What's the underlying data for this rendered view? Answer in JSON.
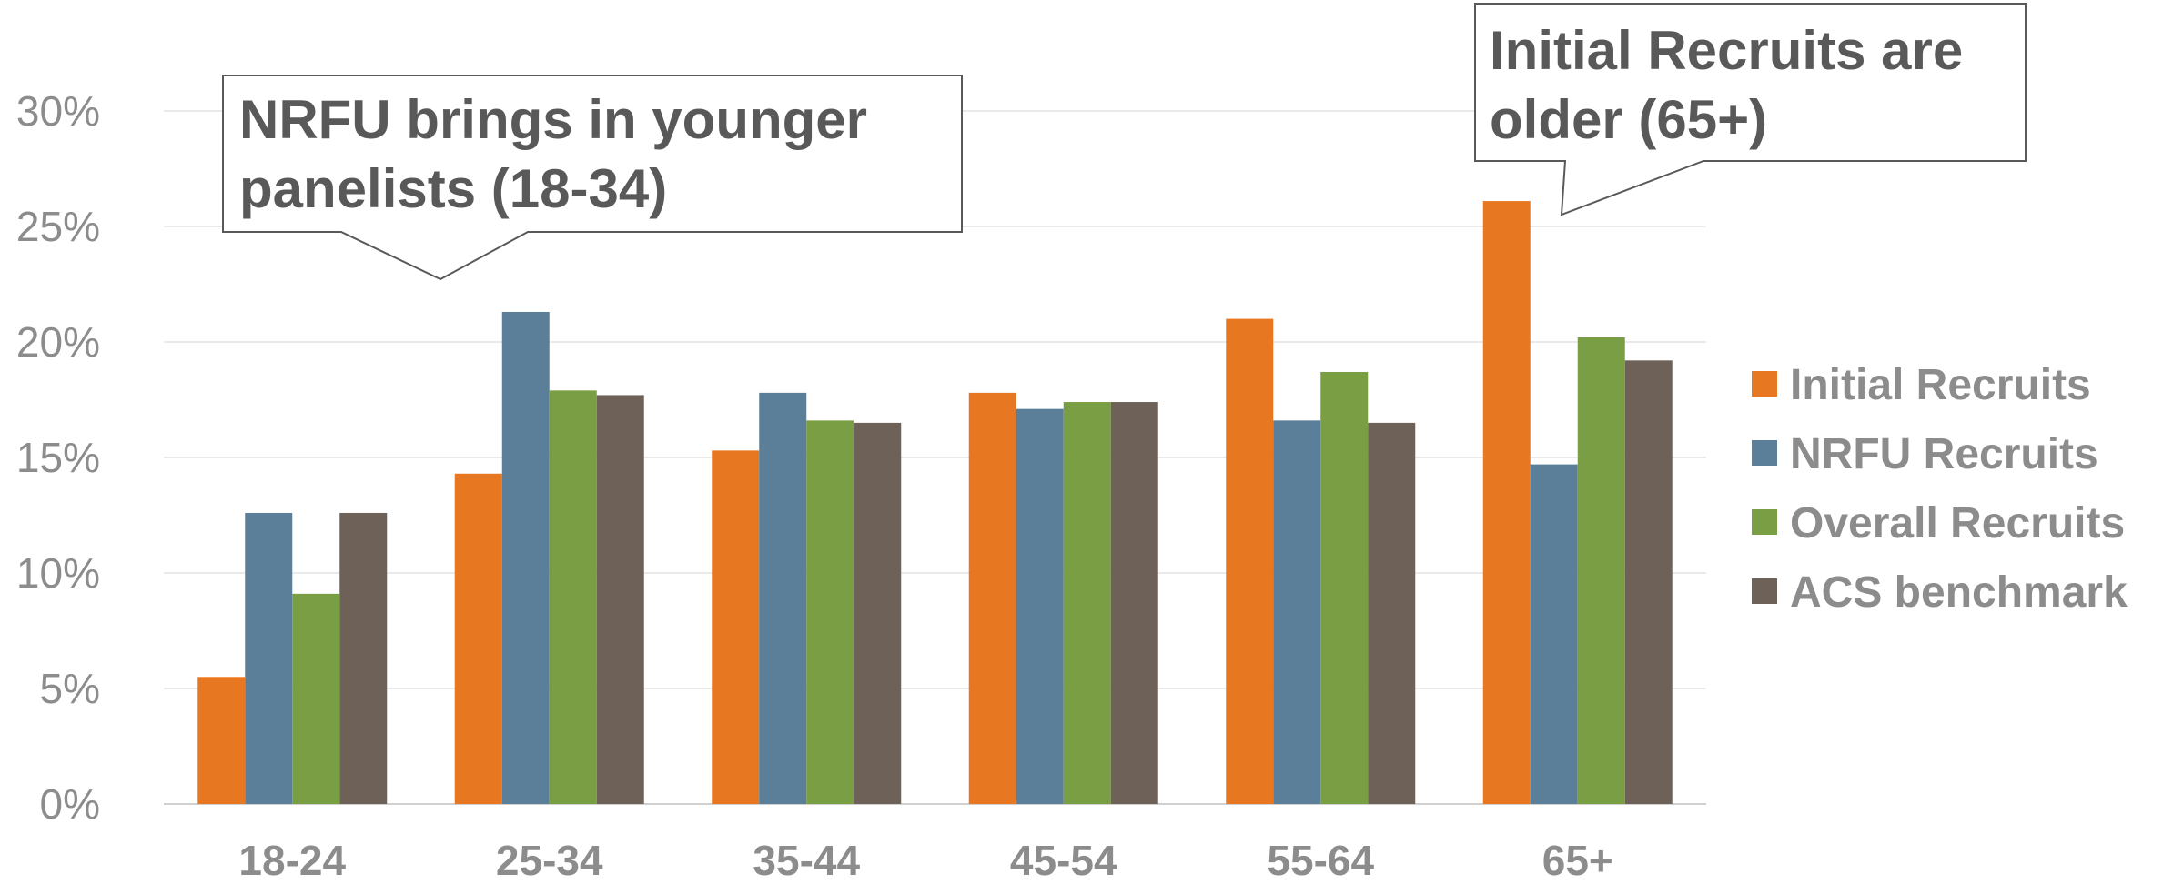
{
  "chart_data": {
    "type": "bar",
    "categories": [
      "18-24",
      "25-34",
      "35-44",
      "45-54",
      "55-64",
      "65+"
    ],
    "series": [
      {
        "name": "Initial Recruits",
        "color": "#E87722",
        "values": [
          5.5,
          14.3,
          15.3,
          17.8,
          21.0,
          26.1
        ]
      },
      {
        "name": "NRFU Recruits",
        "color": "#5B7F99",
        "values": [
          12.6,
          21.3,
          17.8,
          17.1,
          16.6,
          14.7
        ]
      },
      {
        "name": "Overall Recruits",
        "color": "#7A9E44",
        "values": [
          9.1,
          17.9,
          16.6,
          17.4,
          18.7,
          20.2
        ]
      },
      {
        "name": "ACS benchmark",
        "color": "#6E6258",
        "values": [
          12.6,
          17.7,
          16.5,
          17.4,
          16.5,
          19.2
        ]
      }
    ],
    "ylim": [
      0,
      30
    ],
    "yticks": [
      "0%",
      "5%",
      "10%",
      "15%",
      "20%",
      "25%",
      "30%"
    ],
    "grid": true,
    "legend_position": "right",
    "annotations": [
      {
        "lines": [
          "NRFU brings in younger",
          "panelists (18-34)"
        ],
        "points_to": "25-34"
      },
      {
        "lines": [
          "Initial Recruits are",
          "older (65+)"
        ],
        "points_to": "65+"
      }
    ]
  }
}
